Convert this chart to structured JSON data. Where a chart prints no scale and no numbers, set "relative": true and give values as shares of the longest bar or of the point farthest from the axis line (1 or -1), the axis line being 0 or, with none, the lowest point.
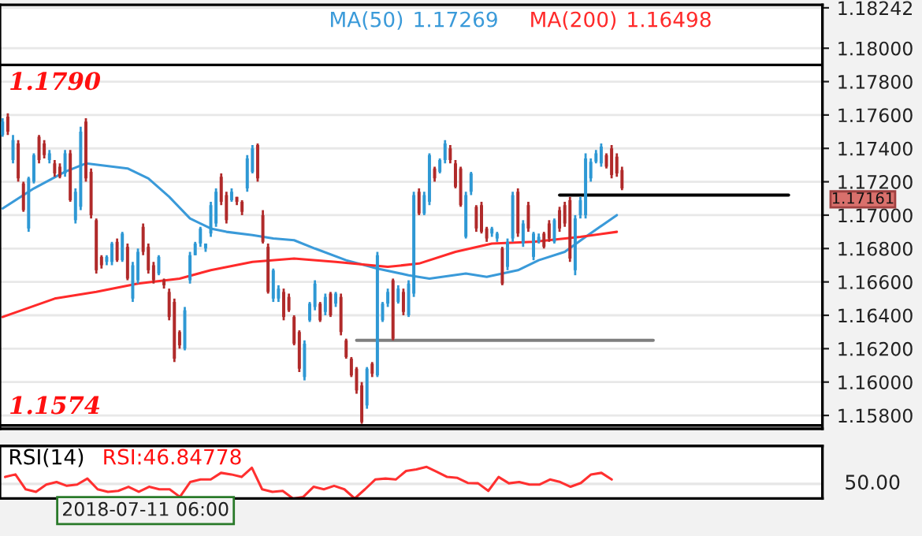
{
  "chart_data": [
    {
      "type": "candlestick",
      "categories": [
        null,
        null,
        null,
        null,
        null,
        null,
        null,
        null,
        null,
        null,
        null,
        null,
        null,
        null,
        null,
        null,
        null,
        null,
        null,
        null,
        null,
        null,
        null,
        null,
        null,
        null,
        null,
        null,
        null,
        null,
        null,
        null,
        null,
        null,
        null,
        null,
        null,
        null,
        null,
        null,
        null,
        null,
        null,
        null,
        null,
        null,
        null,
        null,
        null,
        null,
        null,
        null,
        null,
        null,
        null,
        null,
        null,
        null,
        null,
        null,
        null,
        null,
        null,
        null,
        null,
        null,
        null,
        null,
        null,
        null,
        null,
        null,
        null,
        null,
        null,
        null,
        null,
        null,
        null,
        null,
        null,
        null,
        null,
        null,
        null,
        null,
        null,
        null,
        null,
        null,
        null,
        null,
        null,
        null,
        null,
        null,
        null,
        null,
        null,
        null,
        null,
        null,
        null,
        null,
        null,
        null,
        null,
        null,
        null,
        null,
        null,
        null,
        null,
        null,
        null,
        null,
        null,
        null,
        null,
        null,
        null,
        null,
        null,
        null,
        null,
        null,
        null,
        null,
        null,
        null,
        null,
        null,
        null,
        null,
        null,
        null,
        null,
        null,
        null,
        null,
        null,
        null,
        null,
        null,
        null,
        null,
        null,
        null,
        null,
        null,
        null,
        null,
        null,
        null,
        null,
        null,
        null,
        null
      ],
      "ohlc": [
        [
          1.1748,
          1.1758,
          1.1747,
          1.1756
        ],
        [
          1.1759,
          1.1761,
          1.1748,
          1.175
        ],
        [
          1.1733,
          1.1748,
          1.1731,
          1.1745
        ],
        [
          1.1743,
          1.1745,
          1.172,
          1.1722
        ],
        [
          1.1719,
          1.172,
          1.1702,
          1.1703
        ],
        [
          1.1692,
          1.1723,
          1.169,
          1.1722
        ],
        [
          1.172,
          1.1737,
          1.1719,
          1.1736
        ],
        [
          1.1747,
          1.1748,
          1.1731,
          1.1733
        ],
        [
          1.1743,
          1.1745,
          1.1734,
          1.1736
        ],
        [
          1.1733,
          1.1739,
          1.1731,
          1.1737
        ],
        [
          1.1731,
          1.1733,
          1.1723,
          1.1725
        ],
        [
          1.1729,
          1.1731,
          1.1722,
          1.1723
        ],
        [
          1.1725,
          1.1739,
          1.1723,
          1.1737
        ],
        [
          1.1737,
          1.1739,
          1.1708,
          1.1709
        ],
        [
          1.1697,
          1.1716,
          1.1695,
          1.1714
        ],
        [
          1.1705,
          1.1753,
          1.1703,
          1.175
        ],
        [
          1.1756,
          1.1758,
          1.172,
          1.1722
        ],
        [
          1.1726,
          1.1728,
          1.1698,
          1.17
        ],
        [
          1.1697,
          1.1698,
          1.1665,
          1.1667
        ],
        [
          1.1675,
          1.1676,
          1.1668,
          1.167
        ],
        [
          1.1672,
          1.1676,
          1.167,
          1.1675
        ],
        [
          1.1672,
          1.1684,
          1.167,
          1.1683
        ],
        [
          1.1684,
          1.1686,
          1.1672,
          1.1673
        ],
        [
          1.1673,
          1.169,
          1.1672,
          1.1689
        ],
        [
          1.1681,
          1.1683,
          1.1661,
          1.1662
        ],
        [
          1.165,
          1.1672,
          1.1648,
          1.167
        ],
        [
          1.1661,
          1.168,
          1.1659,
          1.1678
        ],
        [
          1.1693,
          1.1695,
          1.1676,
          1.1678
        ],
        [
          1.1681,
          1.1683,
          1.1665,
          1.1667
        ],
        [
          1.167,
          1.1672,
          1.1659,
          1.1661
        ],
        [
          1.1665,
          1.1676,
          1.1664,
          1.1675
        ],
        [
          1.1661,
          1.1662,
          1.1656,
          1.1658
        ],
        [
          1.1654,
          1.1656,
          1.1637,
          1.1639
        ],
        [
          1.1648,
          1.165,
          1.1612,
          1.1614
        ],
        [
          1.163,
          1.1631,
          1.162,
          1.1622
        ],
        [
          1.162,
          1.1645,
          1.1619,
          1.1643
        ],
        [
          1.1661,
          1.1678,
          1.1659,
          1.1676
        ],
        [
          1.1676,
          1.1684,
          1.1676,
          1.1683
        ],
        [
          1.1683,
          1.1693,
          1.1681,
          1.1692
        ],
        [
          1.168,
          1.1683,
          1.1678,
          1.1683
        ],
        [
          1.1689,
          1.1708,
          1.1687,
          1.1706
        ],
        [
          1.1695,
          1.1716,
          1.1693,
          1.1714
        ],
        [
          1.1723,
          1.1725,
          1.1706,
          1.1708
        ],
        [
          1.1712,
          1.1714,
          1.1695,
          1.1697
        ],
        [
          1.1709,
          1.1716,
          1.1708,
          1.1714
        ],
        [
          1.1711,
          1.1711,
          1.1706,
          1.1708
        ],
        [
          1.1708,
          1.1709,
          1.17,
          1.1702
        ],
        [
          1.1716,
          1.1736,
          1.1714,
          1.1734
        ],
        [
          1.1726,
          1.1742,
          1.1725,
          1.174
        ],
        [
          1.1742,
          1.1743,
          1.172,
          1.1722
        ],
        [
          1.17,
          1.1703,
          1.1683,
          1.1684
        ],
        [
          1.1681,
          1.1683,
          1.1653,
          1.1654
        ],
        [
          1.165,
          1.1668,
          1.1648,
          1.1667
        ],
        [
          1.165,
          1.1658,
          1.1648,
          1.1656
        ],
        [
          1.1654,
          1.1656,
          1.1637,
          1.1639
        ],
        [
          1.1651,
          1.1653,
          1.1642,
          1.1643
        ],
        [
          1.1639,
          1.164,
          1.1622,
          1.1623
        ],
        [
          1.163,
          1.1631,
          1.1606,
          1.1608
        ],
        [
          1.1603,
          1.1625,
          1.1601,
          1.1623
        ],
        [
          1.1637,
          1.1648,
          1.1636,
          1.1647
        ],
        [
          1.1645,
          1.1661,
          1.1643,
          1.1659
        ],
        [
          1.1647,
          1.1648,
          1.1636,
          1.1637
        ],
        [
          1.1642,
          1.1653,
          1.164,
          1.1651
        ],
        [
          1.1653,
          1.1654,
          1.1639,
          1.164
        ],
        [
          1.1647,
          1.1654,
          1.1645,
          1.1653
        ],
        [
          1.1651,
          1.1653,
          1.1628,
          1.163
        ],
        [
          1.1625,
          1.1626,
          1.1614,
          1.1615
        ],
        [
          1.1614,
          1.1615,
          1.1603,
          1.1604
        ],
        [
          1.1608,
          1.1609,
          1.1593,
          1.1595
        ],
        [
          1.1598,
          1.16,
          1.1575,
          1.1576
        ],
        [
          1.1586,
          1.1609,
          1.1584,
          1.1608
        ],
        [
          1.1611,
          1.1612,
          1.1603,
          1.1605
        ],
        [
          1.1604,
          1.1678,
          1.1603,
          1.1676
        ],
        [
          1.1637,
          1.1648,
          1.1636,
          1.1647
        ],
        [
          1.1647,
          1.1656,
          1.1645,
          1.1654
        ],
        [
          1.1661,
          1.1662,
          1.1625,
          1.1626
        ],
        [
          1.1648,
          1.1658,
          1.1647,
          1.1656
        ],
        [
          1.1654,
          1.1656,
          1.164,
          1.1642
        ],
        [
          1.164,
          1.1661,
          1.1639,
          1.1659
        ],
        [
          1.1653,
          1.1714,
          1.1651,
          1.1712
        ],
        [
          1.1714,
          1.1716,
          1.17,
          1.1701
        ],
        [
          1.1701,
          1.1714,
          1.17,
          1.1712
        ],
        [
          1.1708,
          1.1737,
          1.1706,
          1.1736
        ],
        [
          1.1728,
          1.1729,
          1.172,
          1.1722
        ],
        [
          1.1726,
          1.1734,
          1.1725,
          1.1733
        ],
        [
          1.1733,
          1.1745,
          1.1731,
          1.1743
        ],
        [
          1.174,
          1.1742,
          1.1731,
          1.1733
        ],
        [
          1.1731,
          1.1733,
          1.1716,
          1.1717
        ],
        [
          1.1728,
          1.1729,
          1.1705,
          1.1706
        ],
        [
          1.1687,
          1.1714,
          1.1686,
          1.1712
        ],
        [
          1.1714,
          1.1726,
          1.1712,
          1.1725
        ],
        [
          1.1705,
          1.1706,
          1.169,
          1.1692
        ],
        [
          1.1706,
          1.1708,
          1.1689,
          1.169
        ],
        [
          1.1692,
          1.1693,
          1.1684,
          1.1686
        ],
        [
          1.1689,
          1.1693,
          1.1687,
          1.1692
        ],
        [
          1.1686,
          1.169,
          1.1684,
          1.1689
        ],
        [
          1.168,
          1.1681,
          1.1658,
          1.1659
        ],
        [
          1.1669,
          1.1686,
          1.1667,
          1.1684
        ],
        [
          1.1686,
          1.1714,
          1.1684,
          1.1712
        ],
        [
          1.1714,
          1.1716,
          1.1687,
          1.1689
        ],
        [
          1.1683,
          1.1697,
          1.1681,
          1.1695
        ],
        [
          1.1706,
          1.1708,
          1.169,
          1.1692
        ],
        [
          1.1675,
          1.169,
          1.1673,
          1.1689
        ],
        [
          1.1684,
          1.1689,
          1.1683,
          1.1687
        ],
        [
          1.1689,
          1.169,
          1.168,
          1.1681
        ],
        [
          1.1695,
          1.1697,
          1.1684,
          1.1686
        ],
        [
          1.1684,
          1.1698,
          1.1683,
          1.1697
        ],
        [
          1.1703,
          1.1705,
          1.169,
          1.1692
        ],
        [
          1.1706,
          1.1708,
          1.1693,
          1.1695
        ],
        [
          1.1709,
          1.1711,
          1.1672,
          1.1674
        ],
        [
          1.1667,
          1.17,
          1.1664,
          1.1698
        ],
        [
          1.17,
          1.1711,
          1.1698,
          1.1709
        ],
        [
          1.17,
          1.1737,
          1.1698,
          1.1734
        ],
        [
          1.1722,
          1.1734,
          1.172,
          1.1732
        ],
        [
          1.1732,
          1.1739,
          1.1731,
          1.1737
        ],
        [
          1.1731,
          1.1743,
          1.1729,
          1.1741
        ],
        [
          1.1736,
          1.1737,
          1.1728,
          1.1729
        ],
        [
          1.174,
          1.1742,
          1.1722,
          1.1724
        ],
        [
          1.1735,
          1.1737,
          1.1723,
          1.1725
        ],
        [
          1.1727,
          1.1729,
          1.1715,
          1.1716
        ],
        null,
        null,
        null,
        null,
        null,
        null,
        null,
        null,
        null,
        null,
        null,
        null,
        null,
        null,
        null,
        null,
        null,
        null,
        null,
        null,
        null,
        null,
        null,
        null,
        null,
        null,
        null,
        null,
        null,
        null,
        null,
        null,
        null,
        null,
        null,
        null,
        null,
        null
      ],
      "colors": [
        "#2e98d4",
        "#b02a2a",
        "#2e98d4",
        "#b02a2a",
        "#b02a2a",
        "#2e98d4",
        "#2e98d4",
        "#b02a2a",
        "#b02a2a",
        "#2e98d4",
        "#b02a2a",
        "#b02a2a",
        "#2e98d4",
        "#b02a2a",
        "#2e98d4",
        "#2e98d4",
        "#b02a2a",
        "#b02a2a",
        "#b02a2a",
        "#b02a2a",
        "#2e98d4",
        "#2e98d4",
        "#b02a2a",
        "#2e98d4",
        "#b02a2a",
        "#2e98d4",
        "#2e98d4",
        "#b02a2a",
        "#b02a2a",
        "#b02a2a",
        "#2e98d4",
        "#b02a2a",
        "#b02a2a",
        "#b02a2a",
        "#b02a2a",
        "#2e98d4",
        "#2e98d4",
        "#2e98d4",
        "#2e98d4",
        "#2e98d4",
        "#2e98d4",
        "#2e98d4",
        "#b02a2a",
        "#b02a2a",
        "#2e98d4",
        "#b02a2a",
        "#b02a2a",
        "#2e98d4",
        "#2e98d4",
        "#b02a2a",
        "#b02a2a",
        "#b02a2a",
        "#2e98d4",
        "#2e98d4",
        "#b02a2a",
        "#b02a2a",
        "#b02a2a",
        "#b02a2a",
        "#2e98d4",
        "#2e98d4",
        "#2e98d4",
        "#b02a2a",
        "#2e98d4",
        "#b02a2a",
        "#2e98d4",
        "#b02a2a",
        "#b02a2a",
        "#b02a2a",
        "#b02a2a",
        "#b02a2a",
        "#2e98d4",
        "#b02a2a",
        "#2e98d4",
        "#2e98d4",
        "#2e98d4",
        "#b02a2a",
        "#2e98d4",
        "#b02a2a",
        "#2e98d4",
        "#2e98d4",
        "#b02a2a",
        "#2e98d4",
        "#2e98d4",
        "#b02a2a",
        "#2e98d4",
        "#2e98d4",
        "#b02a2a",
        "#b02a2a",
        "#b02a2a",
        "#2e98d4",
        "#2e98d4",
        "#b02a2a",
        "#b02a2a",
        "#b02a2a",
        "#2e98d4",
        "#2e98d4",
        "#b02a2a",
        "#2e98d4",
        "#2e98d4",
        "#b02a2a",
        "#2e98d4",
        "#b02a2a",
        "#2e98d4",
        "#2e98d4",
        "#b02a2a",
        "#b02a2a",
        "#2e98d4",
        "#b02a2a",
        "#b02a2a",
        "#b02a2a",
        "#2e98d4",
        "#2e98d4",
        "#2e98d4",
        "#2e98d4",
        "#2e98d4",
        "#2e98d4",
        "#b02a2a",
        "#b02a2a",
        "#b02a2a",
        "#b02a2a",
        null,
        null,
        null,
        null,
        null,
        null,
        null,
        null,
        null,
        null,
        null,
        null,
        null,
        null,
        null,
        null,
        null,
        null,
        null,
        null,
        null,
        null,
        null,
        null,
        null,
        null,
        null,
        null,
        null,
        null,
        null,
        null,
        null,
        null,
        null,
        null,
        null,
        null
      ],
      "series": [
        {
          "type": "line",
          "name": "MA(50)",
          "color": "#3a9ad9",
          "values": [
            1.1704,
            null,
            null,
            null,
            null,
            null,
            1.1716,
            null,
            null,
            null,
            null,
            null,
            1.1726,
            null,
            null,
            null,
            1.1731,
            null,
            null,
            null,
            null,
            null,
            null,
            null,
            1.1728,
            null,
            null,
            null,
            1.1722,
            null,
            null,
            null,
            1.1711,
            null,
            null,
            null,
            1.1698,
            null,
            null,
            null,
            1.1692,
            null,
            null,
            1.169,
            null,
            null,
            null,
            null,
            1.1688,
            null,
            null,
            null,
            1.1686,
            null,
            null,
            null,
            1.1685,
            null,
            null,
            null,
            1.168,
            null,
            null,
            null,
            null,
            null,
            1.1673,
            null,
            null,
            null,
            null,
            null,
            1.1668,
            null,
            null,
            null,
            null,
            null,
            1.1664,
            null,
            null,
            null,
            1.1662,
            null,
            null,
            null,
            null,
            null,
            null,
            1.1665,
            null,
            null,
            null,
            1.1663,
            null,
            null,
            null,
            null,
            null,
            1.1667,
            null,
            null,
            null,
            1.1673,
            null,
            null,
            null,
            null,
            1.1678,
            null,
            null,
            null,
            1.1687,
            null,
            null,
            null,
            null,
            null,
            1.17,
            null,
            null,
            null,
            null,
            null,
            null,
            null,
            null,
            null,
            null,
            null,
            null,
            null,
            null,
            null,
            null,
            null,
            null,
            null,
            null,
            null,
            null,
            null,
            null,
            null,
            null,
            null,
            null,
            null,
            null,
            null,
            null,
            null,
            null,
            null,
            null,
            null,
            null,
            null
          ]
        },
        {
          "type": "line",
          "name": "MA(200)",
          "color": "#ff2a2a",
          "values": [
            1.1639,
            null,
            null,
            null,
            null,
            null,
            null,
            null,
            null,
            null,
            1.165,
            null,
            null,
            null,
            null,
            null,
            null,
            null,
            1.1654,
            null,
            null,
            null,
            null,
            null,
            null,
            null,
            1.1659,
            null,
            null,
            null,
            null,
            null,
            null,
            null,
            1.1662,
            null,
            null,
            null,
            null,
            null,
            1.1667,
            null,
            null,
            null,
            null,
            null,
            null,
            null,
            1.1672,
            null,
            null,
            null,
            null,
            null,
            null,
            null,
            1.1674,
            null,
            null,
            null,
            null,
            null,
            null,
            null,
            1.1672,
            null,
            null,
            null,
            null,
            null,
            null,
            null,
            null,
            null,
            1.1669,
            null,
            null,
            null,
            null,
            null,
            1.1671,
            null,
            null,
            null,
            null,
            null,
            null,
            1.1678,
            null,
            null,
            null,
            null,
            null,
            null,
            1.1683,
            null,
            null,
            null,
            null,
            null,
            null,
            null,
            1.1684,
            null,
            null,
            null,
            null,
            null,
            null,
            null,
            null,
            1.1687,
            null,
            null,
            null,
            null,
            null,
            null,
            1.169,
            null,
            null,
            null,
            null,
            null,
            null,
            null,
            null,
            null,
            null,
            null,
            null,
            null,
            null,
            null,
            null,
            null,
            null,
            null,
            null,
            null,
            null,
            null,
            null,
            null,
            null,
            null,
            null,
            null,
            null,
            null,
            null,
            null,
            null,
            null,
            null,
            null,
            null,
            null
          ]
        },
        {
          "type": "line",
          "color": "#000000",
          "values": [
            null,
            null,
            null,
            null,
            null,
            null,
            null,
            null,
            null,
            null,
            null,
            null,
            null,
            null,
            null,
            null,
            null,
            null,
            null,
            null,
            null,
            null,
            null,
            null,
            null,
            null,
            null,
            null,
            null,
            null,
            null,
            null,
            null,
            null,
            null,
            null,
            null,
            null,
            null,
            null,
            null,
            null,
            null,
            null,
            null,
            null,
            null,
            null,
            null,
            null,
            null,
            null,
            null,
            null,
            null,
            null,
            null,
            null,
            null,
            null,
            null,
            null,
            null,
            null,
            null,
            null,
            null,
            null,
            null,
            null,
            null,
            null,
            null,
            null,
            null,
            null,
            null,
            null,
            null,
            null,
            null,
            null,
            null,
            null,
            null,
            null,
            null,
            null,
            null,
            null,
            null,
            null,
            null,
            null,
            null,
            null,
            null,
            null,
            null,
            null,
            null,
            null,
            null,
            null,
            null,
            null,
            null,
            1.1712,
            null,
            null,
            null,
            null,
            null,
            null,
            null,
            null,
            null,
            null,
            null,
            null,
            null,
            null,
            null,
            null,
            null,
            null,
            null,
            null,
            null,
            null,
            null,
            null,
            null,
            null,
            null,
            null,
            null,
            null,
            null,
            null,
            null,
            null,
            null,
            null,
            null,
            null,
            null,
            null,
            null,
            null,
            null,
            1.1712,
            null,
            null,
            null,
            null,
            null,
            null
          ]
        },
        {
          "type": "line",
          "color": "#7f7f7f",
          "values": [
            null,
            null,
            null,
            null,
            null,
            null,
            null,
            null,
            null,
            null,
            null,
            null,
            null,
            null,
            null,
            null,
            null,
            null,
            null,
            null,
            null,
            null,
            null,
            null,
            null,
            null,
            null,
            null,
            null,
            null,
            null,
            null,
            null,
            null,
            null,
            null,
            null,
            null,
            null,
            null,
            null,
            null,
            null,
            null,
            null,
            null,
            null,
            null,
            null,
            null,
            null,
            null,
            null,
            null,
            null,
            null,
            null,
            null,
            null,
            null,
            null,
            null,
            null,
            null,
            null,
            null,
            null,
            null,
            1.1625,
            null,
            null,
            null,
            null,
            null,
            null,
            null,
            null,
            null,
            null,
            null,
            null,
            null,
            null,
            null,
            null,
            null,
            null,
            null,
            null,
            null,
            null,
            null,
            null,
            null,
            null,
            null,
            null,
            null,
            null,
            null,
            null,
            null,
            null,
            null,
            null,
            null,
            null,
            null,
            null,
            null,
            null,
            null,
            null,
            null,
            null,
            null,
            null,
            null,
            null,
            null,
            null,
            null,
            null,
            null,
            null,
            1.1625,
            null,
            null,
            null,
            null,
            null,
            null,
            null,
            null,
            null,
            null,
            null,
            null,
            null,
            null,
            null,
            null,
            null,
            null,
            null,
            null,
            null,
            null,
            null,
            null,
            null,
            null,
            null,
            null,
            null,
            null,
            null,
            null
          ]
        }
      ],
      "annotations": [
        "1.17269",
        "1.16498",
        "1.17161"
      ],
      "legend": "top",
      "ylim": [
        1.1572,
        1.1826
      ],
      "yticks": [
        {
          "value": 1.158,
          "label": "1.15800"
        },
        {
          "value": 1.16,
          "label": "1.16000"
        },
        {
          "value": 1.162,
          "label": "1.16200"
        },
        {
          "value": 1.164,
          "label": "1.16400"
        },
        {
          "value": 1.166,
          "label": "1.16600"
        },
        {
          "value": 1.168,
          "label": "1.16800"
        },
        {
          "value": 1.17,
          "label": "1.17000"
        },
        {
          "value": 1.172,
          "label": "1.17200"
        },
        {
          "value": 1.174,
          "label": "1.17400"
        },
        {
          "value": 1.176,
          "label": "1.17600"
        },
        {
          "value": 1.178,
          "label": "1.17800"
        },
        {
          "value": 1.18,
          "label": "1.18000"
        },
        {
          "value": 1.18242,
          "label": "1.18242"
        }
      ],
      "ref_lines": [
        {
          "axis": "y",
          "value": 1.179,
          "label": "1.1790",
          "color": "#000000"
        },
        {
          "axis": "y",
          "value": 1.1574,
          "label": "1.1574",
          "color": "#000000"
        }
      ],
      "grid": "y",
      "tick_labels": "y"
    },
    {
      "type": "line",
      "title": "RSI(14)",
      "subtitle": "RSI:46.84778",
      "relative": true,
      "categories": [
        null,
        null,
        null,
        null,
        null,
        null,
        null,
        null,
        null,
        null,
        null,
        null,
        null,
        null,
        null,
        null,
        null,
        null,
        null,
        null,
        null,
        null,
        null,
        null,
        null,
        null,
        null,
        null,
        null,
        null,
        null,
        null,
        null,
        null,
        null,
        null,
        null,
        null,
        null,
        null,
        null,
        null,
        null,
        null,
        null,
        null,
        null,
        null,
        null,
        null,
        null,
        null,
        null,
        null,
        null,
        null,
        null,
        null,
        null,
        null,
        null,
        null,
        null,
        null,
        null,
        null,
        null,
        null,
        null,
        null,
        null,
        null,
        null,
        null,
        null,
        null,
        null,
        null,
        null,
        null
      ],
      "series": [
        {
          "color": "#ff3030",
          "values": [
            0.68,
            0.76,
            0.29,
            0.21,
            0.44,
            0.52,
            0.4,
            0.44,
            0.63,
            0.29,
            0.21,
            0.24,
            0.37,
            0.21,
            0.37,
            0.29,
            0.29,
            0.05,
            0.52,
            0.6,
            0.6,
            0.81,
            0.76,
            0.68,
            0.97,
            0.29,
            0.21,
            0.24,
            0,
            0.05,
            0.37,
            0.29,
            0.4,
            0.29,
            0,
            0.29,
            0.6,
            0.63,
            0.6,
            0.87,
            0.92,
            1,
            0.84,
            0.68,
            0.65,
            0.49,
            0.48,
            0.24,
            0.68,
            0.48,
            0.52,
            0.44,
            0.44,
            0.6,
            0.52,
            0.37,
            0.49,
            0.76,
            0.81,
            0.6,
            null,
            null,
            null,
            null,
            null,
            null,
            null,
            null,
            null,
            null,
            null,
            null,
            null,
            null,
            null,
            null,
            null,
            null,
            null,
            null
          ]
        }
      ],
      "ref_lines": [
        {
          "axis": "y",
          "value": 0.46,
          "color": "#e6e6e6"
        }
      ],
      "annotations": [
        "50.00",
        "2018-07-11 06:00"
      ],
      "tick_labels": false
    }
  ]
}
